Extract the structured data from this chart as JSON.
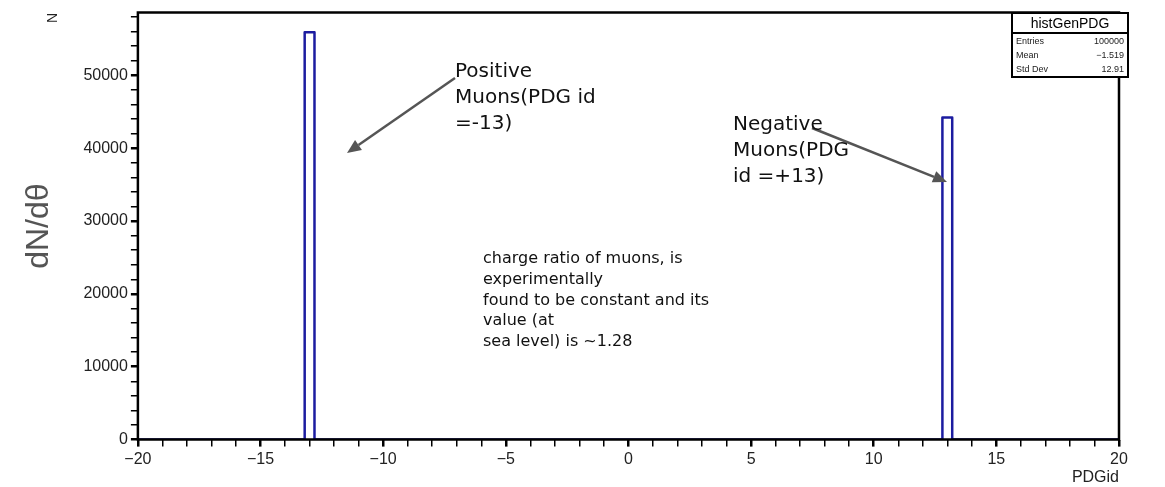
{
  "chart_data": {
    "type": "histogram",
    "xlabel": "PDGid",
    "ylabel": "dN/dθ",
    "bins": [
      -20,
      -13.2,
      -12.8,
      12.8,
      13.2,
      20
    ],
    "values": [
      0,
      55900,
      0,
      44200,
      0
    ],
    "color": "#1c1ca0",
    "xlim": [
      -20,
      20
    ],
    "xticks": [
      -20,
      {
        "value": -19,
        "label": null
      },
      {
        "value": -18,
        "label": null
      },
      {
        "value": -17,
        "label": null
      },
      {
        "value": -16,
        "label": null
      },
      -15,
      {
        "value": -14,
        "label": null
      },
      {
        "value": -13,
        "label": null
      },
      {
        "value": -12,
        "label": null
      },
      {
        "value": -11,
        "label": null
      },
      -10,
      {
        "value": -9,
        "label": null
      },
      {
        "value": -8,
        "label": null
      },
      {
        "value": -7,
        "label": null
      },
      {
        "value": -6,
        "label": null
      },
      -5,
      {
        "value": -4,
        "label": null
      },
      {
        "value": -3,
        "label": null
      },
      {
        "value": -2,
        "label": null
      },
      {
        "value": -1,
        "label": null
      },
      0,
      {
        "value": 1,
        "label": null
      },
      {
        "value": 2,
        "label": null
      },
      {
        "value": 3,
        "label": null
      },
      {
        "value": 4,
        "label": null
      },
      5,
      {
        "value": 6,
        "label": null
      },
      {
        "value": 7,
        "label": null
      },
      {
        "value": 8,
        "label": null
      },
      {
        "value": 9,
        "label": null
      },
      10,
      {
        "value": 11,
        "label": null
      },
      {
        "value": 12,
        "label": null
      },
      {
        "value": 13,
        "label": null
      },
      {
        "value": 14,
        "label": null
      },
      15,
      {
        "value": 16,
        "label": null
      },
      {
        "value": 17,
        "label": null
      },
      {
        "value": 18,
        "label": null
      },
      {
        "value": 19,
        "label": null
      },
      20
    ],
    "ylim": [
      0,
      58600
    ],
    "yticks": [
      0,
      {
        "value": 2000,
        "label": null
      },
      {
        "value": 4000,
        "label": null
      },
      {
        "value": 6000,
        "label": null
      },
      {
        "value": 8000,
        "label": null
      },
      10000,
      {
        "value": 12000,
        "label": null
      },
      {
        "value": 14000,
        "label": null
      },
      {
        "value": 16000,
        "label": null
      },
      {
        "value": 18000,
        "label": null
      },
      20000,
      {
        "value": 22000,
        "label": null
      },
      {
        "value": 24000,
        "label": null
      },
      {
        "value": 26000,
        "label": null
      },
      {
        "value": 28000,
        "label": null
      },
      30000,
      {
        "value": 32000,
        "label": null
      },
      {
        "value": 34000,
        "label": null
      },
      {
        "value": 36000,
        "label": null
      },
      {
        "value": 38000,
        "label": null
      },
      40000,
      {
        "value": 42000,
        "label": null
      },
      {
        "value": 44000,
        "label": null
      },
      {
        "value": 46000,
        "label": null
      },
      {
        "value": 48000,
        "label": null
      },
      50000,
      {
        "value": 52000,
        "label": null
      },
      {
        "value": 54000,
        "label": null
      },
      {
        "value": 56000,
        "label": null
      },
      {
        "value": 58000,
        "label": null
      }
    ],
    "annotations": [
      "N",
      "Positive\nMuons(PDG id\n=-13)",
      "Negative\nMuons(PDG\nid =+13)",
      "charge ratio of muons, is\nexperimentally\nfound to be constant and  its\nvalue (at\nsea level) is ~1.28",
      "histGenPDG",
      "Entries",
      "100000",
      "Mean",
      "−1.519",
      "Std Dev",
      "12.91"
    ]
  }
}
